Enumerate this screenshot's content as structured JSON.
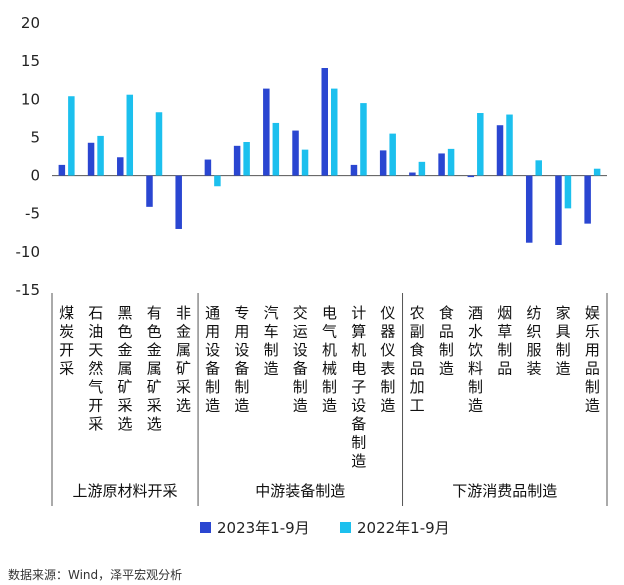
{
  "chart_data": {
    "type": "bar",
    "ylim": [
      -15,
      20
    ],
    "yticks": [
      -15,
      -10,
      -5,
      0,
      5,
      10,
      15,
      20
    ],
    "categories": [
      "煤炭开采",
      "石油天然气开采",
      "黑色金属矿采选",
      "有色金属矿采选",
      "非金属矿采选",
      "通用设备制造",
      "专用设备制造",
      "汽车制造",
      "交运设备制造",
      "电气机械制造",
      "计算机电子设备制造",
      "仪器仪表制造",
      "农副食品加工",
      "食品制造",
      "酒水饮料制造",
      "烟草制品",
      "纺织服装",
      "家具制造",
      "娱乐用品制造"
    ],
    "groups": [
      {
        "label": "上游原材料开采",
        "count": 5
      },
      {
        "label": "中游装备制造",
        "count": 7
      },
      {
        "label": "下游消费品制造",
        "count": 7
      }
    ],
    "series": [
      {
        "name": "2023年1-9月",
        "color": "#2a46d1",
        "values": [
          1.4,
          4.3,
          2.4,
          -4.1,
          -7.0,
          2.1,
          3.9,
          11.4,
          5.9,
          14.1,
          1.4,
          3.3,
          0.4,
          2.9,
          -0.2,
          6.6,
          -8.8,
          -9.1,
          -6.3
        ]
      },
      {
        "name": "2022年1-9月",
        "color": "#1cc0ee",
        "values": [
          10.4,
          5.2,
          10.6,
          8.3,
          0.0,
          -1.4,
          4.4,
          6.9,
          3.4,
          11.4,
          9.5,
          5.5,
          1.8,
          3.5,
          8.2,
          8.0,
          2.0,
          -4.3,
          0.9
        ]
      }
    ],
    "source": "数据来源：Wind，泽平宏观分析"
  }
}
